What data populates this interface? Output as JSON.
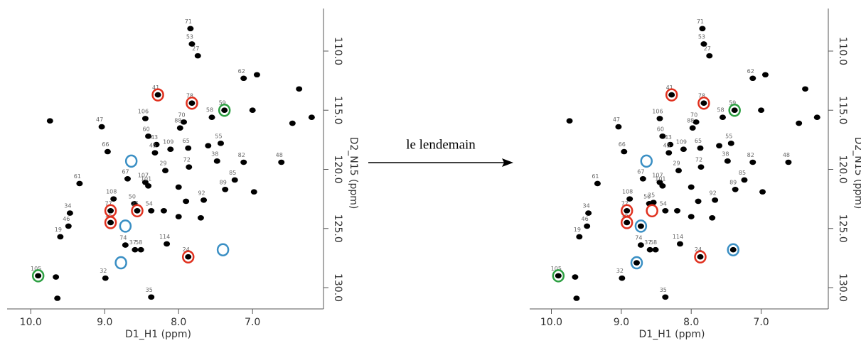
{
  "arrow_label": "le lendemain",
  "chart_data": [
    {
      "type": "scatter",
      "x_label": "D1_H1 (ppm)",
      "y_label": "D2_N15 (ppm)",
      "xlim": [
        10.32,
        6.04
      ],
      "ylim": [
        106.4,
        131.8
      ],
      "xticks": [
        {
          "value": 10,
          "label": "10.0"
        },
        {
          "value": 9,
          "label": "9.0"
        },
        {
          "value": 8,
          "label": "8.0"
        },
        {
          "value": 7,
          "label": "7.0"
        }
      ],
      "yticks": [
        {
          "value": 110,
          "label": "110.0"
        },
        {
          "value": 115,
          "label": "115.0"
        },
        {
          "value": 120,
          "label": "120.0"
        },
        {
          "value": 125,
          "label": "125.0"
        },
        {
          "value": 130,
          "label": "130.0"
        }
      ],
      "peaks": {
        "color": "#000000",
        "x": [
          7.84,
          7.82,
          7.74,
          7.12,
          8.28,
          7.82,
          7.38,
          8.45,
          7.93,
          7.55,
          9.04,
          7.98,
          8.41,
          8.3,
          8.32,
          7.43,
          8.96,
          8.11,
          7.87,
          7.48,
          7.12,
          6.61,
          9.34,
          8.69,
          8.45,
          8.41,
          8.18,
          7.86,
          7.24,
          7.37,
          8.88,
          8.6,
          7.66,
          9.47,
          8.92,
          8.56,
          8.37,
          8.92,
          9.49,
          9.6,
          8.72,
          8.59,
          8.51,
          8.16,
          7.87,
          9.9,
          8.99,
          8.37,
          9.74,
          9.66,
          9.64,
          6.37,
          6.94,
          6.2,
          7.0,
          6.46,
          8.0,
          7.7,
          8.2,
          7.6,
          8.0,
          7.9,
          6.98
        ],
        "y": [
          108.1,
          109.4,
          110.4,
          112.3,
          113.7,
          114.4,
          115.0,
          115.7,
          116.0,
          115.6,
          116.4,
          116.5,
          117.2,
          117.9,
          118.6,
          117.8,
          118.5,
          118.3,
          118.2,
          119.3,
          119.4,
          119.4,
          121.2,
          120.8,
          121.1,
          121.4,
          120.1,
          119.8,
          120.9,
          121.7,
          122.5,
          122.9,
          122.6,
          123.7,
          123.5,
          123.5,
          123.5,
          124.5,
          124.8,
          125.7,
          126.4,
          126.8,
          126.8,
          126.3,
          127.4,
          129.0,
          129.2,
          130.8,
          115.9,
          129.1,
          130.9,
          113.2,
          112.0,
          115.6,
          115.0,
          116.1,
          124.0,
          124.1,
          123.5,
          118.0,
          121.5,
          122.7,
          121.9
        ],
        "labels": [
          "71",
          "53",
          "27",
          "62",
          "41",
          "78",
          "59",
          "106",
          "70",
          "58",
          "47",
          "88",
          "60",
          "43",
          "45",
          "55",
          "66",
          "109",
          "65",
          "38",
          "82",
          "48",
          "61",
          "67",
          "107",
          "101",
          "29",
          "72",
          "85",
          "89",
          "108",
          "50",
          "92",
          "34",
          "77",
          "25",
          "54",
          "15",
          "46",
          "19",
          "74",
          "37",
          "58",
          "114",
          "24",
          "105",
          "32",
          "35",
          null,
          null,
          null,
          null,
          null,
          null,
          null,
          null,
          null,
          null,
          null,
          null,
          null,
          null,
          null
        ]
      },
      "circles": [
        {
          "color": "#e0301e",
          "x": [
            8.28,
            7.82,
            8.92,
            8.92,
            8.56,
            7.87
          ],
          "y": [
            113.7,
            114.4,
            123.5,
            124.5,
            123.5,
            127.4
          ]
        },
        {
          "color": "#3a8fc4",
          "x": [
            8.64,
            8.72,
            8.78,
            7.4
          ],
          "y": [
            119.3,
            124.8,
            127.9,
            126.8
          ]
        },
        {
          "color": "#2ea043",
          "x": [
            7.38,
            9.9
          ],
          "y": [
            115.0,
            129.0
          ]
        }
      ]
    },
    {
      "type": "scatter",
      "x_label": "D1_H1 (ppm)",
      "y_label": "D2_N15 (ppm)",
      "xlim": [
        10.31,
        6.04
      ],
      "ylim": [
        106.4,
        131.8
      ],
      "xticks": [
        {
          "value": 10,
          "label": "10.0"
        },
        {
          "value": 9,
          "label": "9.0"
        },
        {
          "value": 8,
          "label": "8.0"
        },
        {
          "value": 7,
          "label": "7.0"
        }
      ],
      "yticks": [
        {
          "value": 110,
          "label": "110.0"
        },
        {
          "value": 115,
          "label": "115.0"
        },
        {
          "value": 120,
          "label": "120.0"
        },
        {
          "value": 125,
          "label": "125.0"
        },
        {
          "value": 130,
          "label": "130.0"
        }
      ],
      "peaks": {
        "color": "#000000",
        "x": [
          7.84,
          7.82,
          7.74,
          7.12,
          8.28,
          7.82,
          7.38,
          8.45,
          7.93,
          7.55,
          9.04,
          7.98,
          8.41,
          8.3,
          8.32,
          7.43,
          8.96,
          8.11,
          7.87,
          7.48,
          7.12,
          6.61,
          9.34,
          8.69,
          8.45,
          8.41,
          8.18,
          7.86,
          7.24,
          7.37,
          8.88,
          8.6,
          7.66,
          9.47,
          8.92,
          8.54,
          8.37,
          8.92,
          9.49,
          9.6,
          8.72,
          8.59,
          8.51,
          8.16,
          7.87,
          9.9,
          8.99,
          8.37,
          9.74,
          9.66,
          9.64,
          6.37,
          6.94,
          6.2,
          7.0,
          6.46,
          8.0,
          7.7,
          8.2,
          7.6,
          8.0,
          7.9,
          6.98,
          8.72,
          7.4,
          8.78
        ],
        "y": [
          108.1,
          109.4,
          110.4,
          112.3,
          113.7,
          114.4,
          115.0,
          115.7,
          116.0,
          115.6,
          116.4,
          116.5,
          117.2,
          117.9,
          118.6,
          117.8,
          118.5,
          118.3,
          118.2,
          119.3,
          119.4,
          119.4,
          121.2,
          120.8,
          121.1,
          121.4,
          120.1,
          119.8,
          120.9,
          121.7,
          122.5,
          122.9,
          122.6,
          123.7,
          123.5,
          122.8,
          123.5,
          124.5,
          124.8,
          125.7,
          126.4,
          126.8,
          126.8,
          126.3,
          127.4,
          129.0,
          129.2,
          130.8,
          115.9,
          129.1,
          130.9,
          113.2,
          112.0,
          115.6,
          115.0,
          116.1,
          124.0,
          124.1,
          123.5,
          118.0,
          121.5,
          122.7,
          121.9,
          124.8,
          126.8,
          127.9
        ],
        "labels": [
          "71",
          "53",
          "27",
          "62",
          "41",
          "78",
          "59",
          "106",
          "70",
          "58",
          "47",
          "88",
          "60",
          "43",
          "45",
          "55",
          "66",
          "109",
          "65",
          "38",
          "82",
          "48",
          "61",
          "67",
          "107",
          "101",
          "29",
          "72",
          "85",
          "89",
          "108",
          "50",
          "92",
          "34",
          "77",
          "25",
          "54",
          "15",
          "46",
          "19",
          "74",
          "37",
          "58",
          "114",
          "24",
          "105",
          "32",
          "35",
          null,
          null,
          null,
          null,
          null,
          null,
          null,
          null,
          null,
          null,
          null,
          null,
          null,
          null,
          null,
          null,
          null,
          null
        ]
      },
      "circles": [
        {
          "color": "#e0301e",
          "x": [
            8.28,
            7.82,
            8.92,
            8.92,
            8.56,
            7.87
          ],
          "y": [
            113.7,
            114.4,
            123.5,
            124.5,
            123.5,
            127.4
          ]
        },
        {
          "color": "#3a8fc4",
          "x": [
            8.64,
            8.72,
            8.78,
            7.4
          ],
          "y": [
            119.3,
            124.8,
            127.9,
            126.8
          ]
        },
        {
          "color": "#2ea043",
          "x": [
            7.38,
            9.9
          ],
          "y": [
            115.0,
            129.0
          ]
        }
      ]
    }
  ]
}
